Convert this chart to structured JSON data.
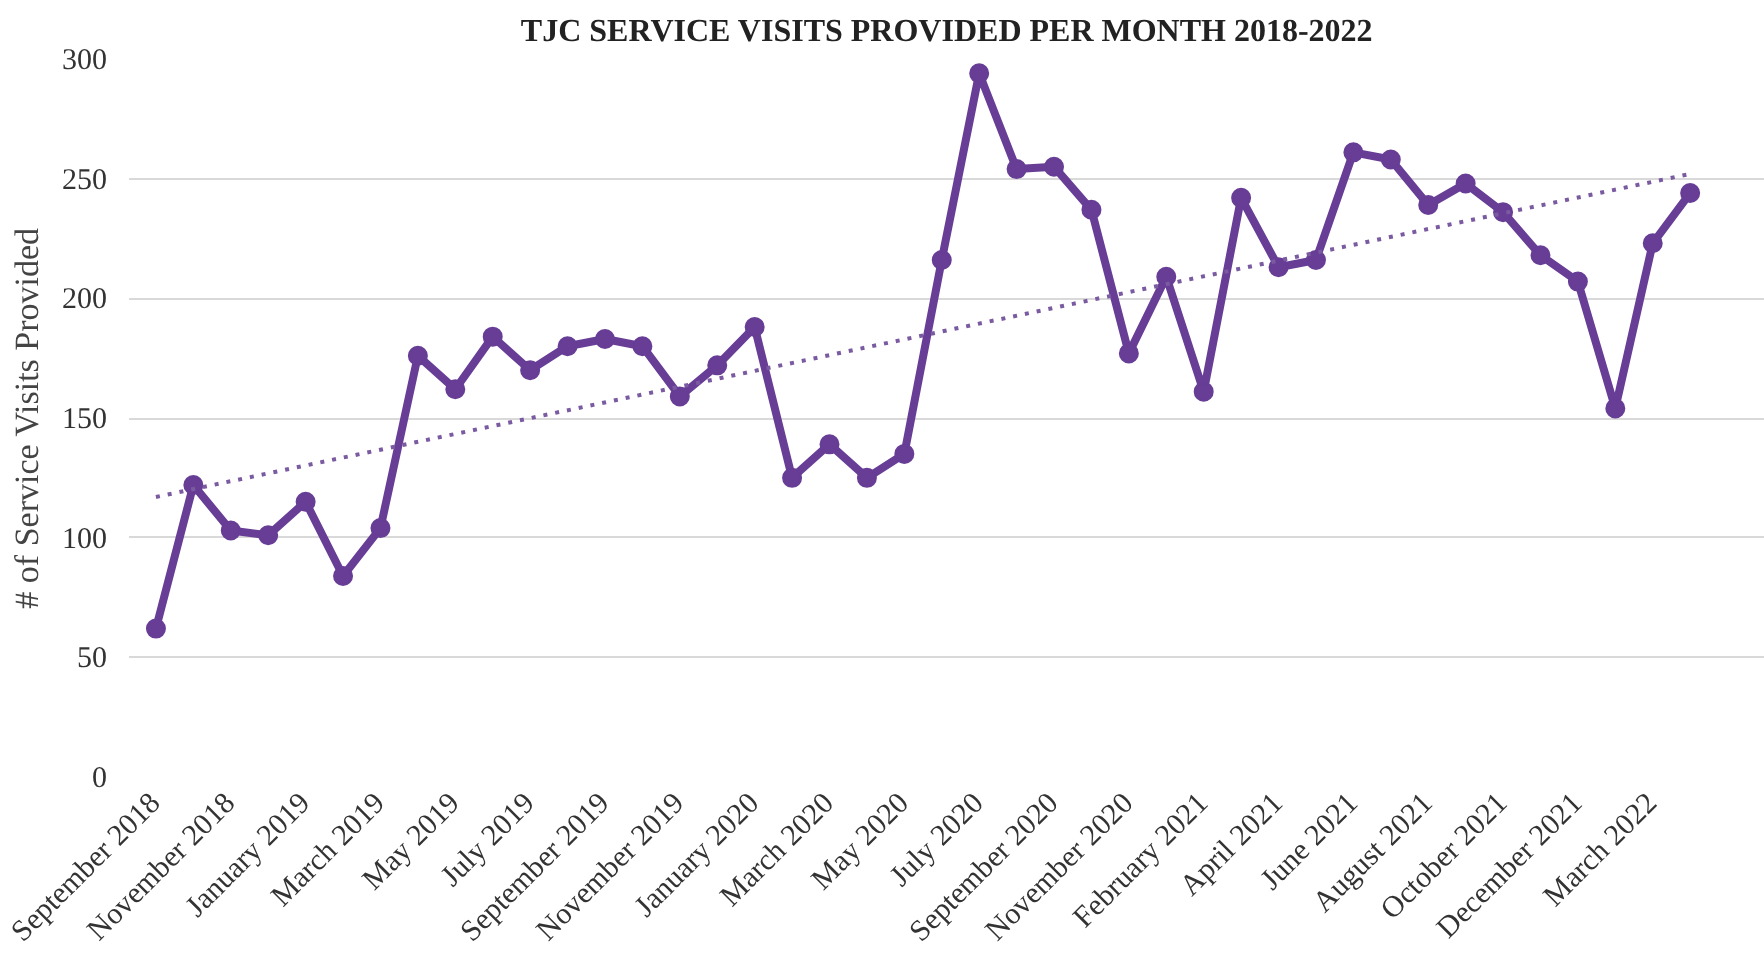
{
  "chart_data": {
    "type": "line",
    "title": "TJC SERVICE VISITS PROVIDED PER MONTH 2018-2022",
    "ylabel": "# of Service Visits Provided",
    "categories": [
      "September 2018",
      null,
      "November 2018",
      null,
      "January 2019",
      null,
      "March 2019",
      null,
      "May 2019",
      null,
      "July 2019",
      null,
      "September 2019",
      null,
      "November 2019",
      null,
      "January 2020",
      null,
      "March 2020",
      null,
      "May 2020",
      null,
      "July 2020",
      null,
      "September 2020",
      null,
      "November 2020",
      null,
      "February 2021",
      null,
      "April 2021",
      null,
      "June 2021",
      null,
      "August 2021",
      null,
      "October 2021",
      null,
      "December 2021",
      null,
      "March 2022",
      null
    ],
    "series": [
      {
        "color": "#673d96",
        "marker": "circle",
        "line_style": "solid",
        "values": [
          62,
          122,
          103,
          101,
          115,
          84,
          104,
          176,
          162,
          184,
          170,
          180,
          183,
          180,
          159,
          172,
          188,
          125,
          139,
          125,
          135,
          216,
          294,
          254,
          255,
          237,
          177,
          209,
          161,
          242,
          213,
          216,
          261,
          258,
          239,
          248,
          236,
          218,
          207,
          154,
          223,
          244
        ]
      },
      {
        "color": "#7a5aa0",
        "marker": "none",
        "line_style": "dotted",
        "values": [
          117,
          null,
          null,
          null,
          null,
          null,
          null,
          null,
          null,
          null,
          null,
          null,
          null,
          null,
          null,
          null,
          null,
          null,
          null,
          null,
          null,
          null,
          null,
          null,
          null,
          null,
          null,
          null,
          null,
          null,
          null,
          null,
          null,
          null,
          null,
          null,
          null,
          null,
          null,
          null,
          null,
          252
        ]
      }
    ],
    "ylim": [
      0,
      300
    ],
    "yticks": [
      0,
      50,
      100,
      150,
      200,
      250,
      300
    ],
    "grid": "y"
  }
}
